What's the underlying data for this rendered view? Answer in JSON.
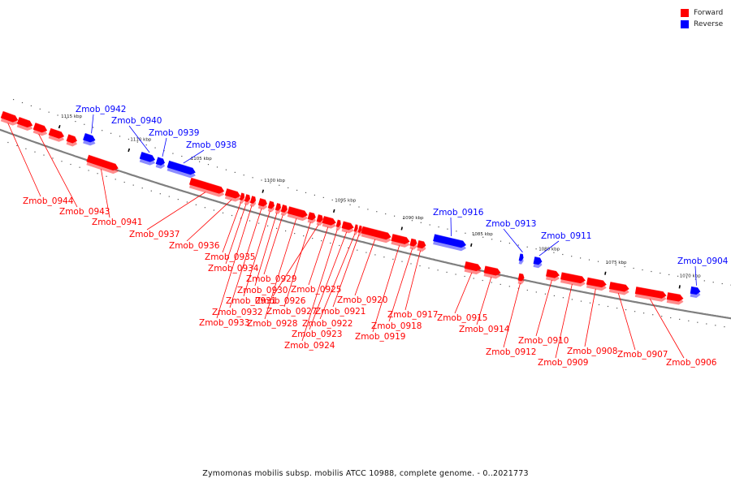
{
  "caption": "Zymomonas mobilis subsp. mobilis ATCC 10988, complete genome. - 0..2021773",
  "legend": [
    {
      "label": "Forward",
      "color": "#ff0000"
    },
    {
      "label": "Reverse",
      "color": "#0000ff"
    }
  ],
  "colors": {
    "forward": "#ff0000",
    "reverse": "#0000ff",
    "backbone": "#7f7f7f"
  },
  "ticks": [
    "1115 kbp",
    "1110 kbp",
    "1105 kbp",
    "1100 kbp",
    "1095 kbp",
    "1090 kbp",
    "1085 kbp",
    "1080 kbp",
    "1075 kbp",
    "1070 kbp"
  ],
  "genes": [
    {
      "name": "Zmob_0944",
      "strand": "forward"
    },
    {
      "name": "Zmob_0943",
      "strand": "forward"
    },
    {
      "name": "Zmob_0942",
      "strand": "reverse"
    },
    {
      "name": "Zmob_0941",
      "strand": "forward"
    },
    {
      "name": "Zmob_0940",
      "strand": "reverse"
    },
    {
      "name": "Zmob_0939",
      "strand": "reverse"
    },
    {
      "name": "Zmob_0938",
      "strand": "reverse"
    },
    {
      "name": "Zmob_0937",
      "strand": "forward"
    },
    {
      "name": "Zmob_0936",
      "strand": "forward"
    },
    {
      "name": "Zmob_0935",
      "strand": "forward"
    },
    {
      "name": "Zmob_0934",
      "strand": "forward"
    },
    {
      "name": "Zmob_0933",
      "strand": "forward"
    },
    {
      "name": "Zmob_0932",
      "strand": "forward"
    },
    {
      "name": "Zmob_0931",
      "strand": "forward"
    },
    {
      "name": "Zmob_0930",
      "strand": "forward"
    },
    {
      "name": "Zmob_0929",
      "strand": "forward"
    },
    {
      "name": "Zmob_0928",
      "strand": "forward"
    },
    {
      "name": "Zmob_0927",
      "strand": "forward"
    },
    {
      "name": "Zmob_0926",
      "strand": "forward"
    },
    {
      "name": "Zmob_0925",
      "strand": "forward"
    },
    {
      "name": "Zmob_0924",
      "strand": "forward"
    },
    {
      "name": "Zmob_0923",
      "strand": "forward"
    },
    {
      "name": "Zmob_0922",
      "strand": "forward"
    },
    {
      "name": "Zmob_0921",
      "strand": "forward"
    },
    {
      "name": "Zmob_0920",
      "strand": "forward"
    },
    {
      "name": "Zmob_0919",
      "strand": "forward"
    },
    {
      "name": "Zmob_0918",
      "strand": "forward"
    },
    {
      "name": "Zmob_0917",
      "strand": "forward"
    },
    {
      "name": "Zmob_0916",
      "strand": "reverse"
    },
    {
      "name": "Zmob_0915",
      "strand": "forward"
    },
    {
      "name": "Zmob_0914",
      "strand": "forward"
    },
    {
      "name": "Zmob_0913",
      "strand": "reverse"
    },
    {
      "name": "Zmob_0912",
      "strand": "forward"
    },
    {
      "name": "Zmob_0911",
      "strand": "reverse"
    },
    {
      "name": "Zmob_0910",
      "strand": "forward"
    },
    {
      "name": "Zmob_0909",
      "strand": "forward"
    },
    {
      "name": "Zmob_0908",
      "strand": "forward"
    },
    {
      "name": "Zmob_0907",
      "strand": "forward"
    },
    {
      "name": "Zmob_0906",
      "strand": "forward"
    },
    {
      "name": "Zmob_0904",
      "strand": "reverse"
    }
  ]
}
